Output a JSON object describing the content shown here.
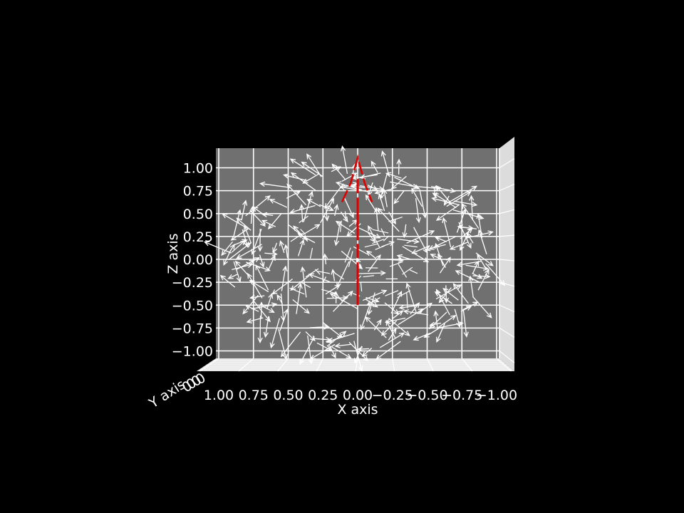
{
  "chart_data": {
    "type": "quiver3d",
    "view": "front (looking along Y axis)",
    "xlabel": "X axis",
    "ylabel": "Y axis",
    "zlabel": "Z axis",
    "x_ticks": [
      "1.00",
      "0.75",
      "0.50",
      "0.25",
      "0.00",
      "−0.25",
      "−0.50",
      "−0.75",
      "−1.00"
    ],
    "z_ticks": [
      "1.00",
      "0.75",
      "0.50",
      "0.25",
      "0.00",
      "−0.25",
      "−0.50",
      "−0.75",
      "−1.00"
    ],
    "xlim": [
      1.0,
      -1.0
    ],
    "zlim": [
      -1.0,
      1.0
    ],
    "grid": true,
    "pane_color": "#707070",
    "background": "#000000",
    "arrow_color": "#ffffff",
    "axis_line_color": "#e00000",
    "vector_field": "random-direction arrows on a unit sphere",
    "red_axis_arrow": {
      "from": [
        0,
        0,
        -0.5
      ],
      "to": [
        0,
        0,
        1.0
      ]
    }
  }
}
